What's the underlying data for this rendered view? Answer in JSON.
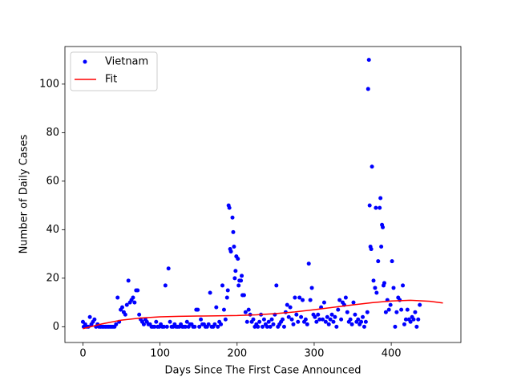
{
  "chart_data": {
    "type": "scatter",
    "xlabel": "Days Since The First Case Announced",
    "ylabel": "Number of Daily Cases",
    "xlim": [
      -23.35,
      490.35
    ],
    "xticks": [
      0,
      100,
      200,
      300,
      400
    ],
    "ylim": [
      -6.5,
      115.5
    ],
    "yticks": [
      0,
      20,
      40,
      60,
      80,
      100
    ],
    "legend": "upper left",
    "series": [
      {
        "name": "Vietnam",
        "color": "#0000ff",
        "type": "scatter",
        "x": [
          0,
          1,
          3,
          5,
          7,
          9,
          11,
          13,
          15,
          17,
          19,
          21,
          23,
          25,
          27,
          29,
          31,
          33,
          35,
          37,
          39,
          41,
          43,
          45,
          47,
          49,
          51,
          53,
          55,
          57,
          59,
          61,
          63,
          65,
          67,
          69,
          71,
          73,
          75,
          77,
          79,
          81,
          83,
          85,
          87,
          89,
          91,
          93,
          95,
          97,
          99,
          101,
          103,
          105,
          107,
          109,
          111,
          113,
          115,
          117,
          119,
          121,
          123,
          125,
          127,
          129,
          131,
          133,
          135,
          137,
          139,
          141,
          143,
          145,
          147,
          149,
          151,
          153,
          155,
          157,
          159,
          161,
          163,
          165,
          167,
          169,
          171,
          173,
          175,
          177,
          179,
          181,
          183,
          185,
          187,
          188,
          189,
          190,
          191,
          192,
          194,
          195,
          196,
          197,
          198,
          199,
          201,
          202,
          203,
          205,
          206,
          207,
          209,
          211,
          213,
          215,
          217,
          219,
          221,
          223,
          225,
          227,
          229,
          231,
          233,
          235,
          237,
          239,
          241,
          243,
          245,
          247,
          249,
          251,
          253,
          255,
          257,
          259,
          261,
          263,
          265,
          267,
          269,
          271,
          273,
          275,
          277,
          279,
          281,
          283,
          285,
          287,
          289,
          291,
          293,
          295,
          297,
          299,
          301,
          303,
          305,
          307,
          309,
          311,
          313,
          315,
          317,
          319,
          321,
          323,
          325,
          327,
          329,
          331,
          333,
          335,
          337,
          339,
          341,
          343,
          345,
          347,
          349,
          351,
          353,
          355,
          357,
          359,
          361,
          363,
          365,
          367,
          369,
          370,
          371,
          372,
          373,
          374,
          375,
          377,
          379,
          380,
          381,
          383,
          385,
          386,
          387,
          388,
          389,
          390,
          391,
          393,
          395,
          397,
          399,
          401,
          403,
          405,
          407,
          409,
          411,
          413,
          415,
          417,
          419,
          421,
          423,
          425,
          427,
          429,
          431,
          433,
          435,
          437
        ],
        "values": [
          2,
          0,
          1,
          0,
          0,
          4,
          1,
          2,
          3,
          0,
          1,
          0,
          0,
          0,
          0,
          0,
          0,
          0,
          0,
          0,
          0,
          0,
          1,
          12,
          2,
          7,
          8,
          6,
          5,
          9,
          19,
          10,
          11,
          12,
          10,
          15,
          15,
          5,
          3,
          2,
          1,
          3,
          2,
          1,
          1,
          0,
          0,
          0,
          2,
          0,
          0,
          1,
          0,
          0,
          17,
          0,
          24,
          2,
          0,
          0,
          1,
          0,
          0,
          0,
          1,
          0,
          0,
          0,
          2,
          0,
          1,
          1,
          0,
          0,
          7,
          7,
          0,
          3,
          1,
          1,
          0,
          0,
          1,
          14,
          0,
          0,
          1,
          8,
          0,
          2,
          1,
          17,
          7,
          3,
          12,
          15,
          50,
          49,
          32,
          31,
          45,
          39,
          33,
          20,
          23,
          29,
          28,
          17,
          19,
          19,
          21,
          13,
          13,
          6,
          2,
          7,
          5,
          2,
          3,
          0,
          1,
          0,
          2,
          5,
          0,
          3,
          1,
          0,
          2,
          0,
          3,
          1,
          5,
          17,
          0,
          1,
          2,
          3,
          0,
          6,
          9,
          4,
          8,
          3,
          1,
          12,
          5,
          2,
          12,
          4,
          11,
          2,
          3,
          1,
          26,
          11,
          16,
          5,
          4,
          2,
          5,
          3,
          8,
          3,
          10,
          2,
          4,
          1,
          3,
          5,
          2,
          4,
          0,
          7,
          11,
          3,
          10,
          9,
          12,
          6,
          2,
          3,
          1,
          10,
          5,
          2,
          3,
          1,
          2,
          4,
          0,
          2,
          6,
          98,
          110,
          50,
          33,
          32,
          66,
          19,
          16,
          49,
          14,
          27,
          49,
          53,
          33,
          42,
          41,
          17,
          18,
          6,
          11,
          7,
          9,
          27,
          16,
          0,
          6,
          12,
          11,
          7,
          17,
          1,
          3,
          7,
          3,
          2,
          4,
          3,
          6,
          0,
          3,
          9
        ]
      },
      {
        "name": "Fit",
        "color": "#ff0000",
        "type": "line",
        "x": [
          0,
          25,
          50,
          75,
          100,
          125,
          150,
          175,
          200,
          225,
          250,
          275,
          300,
          325,
          350,
          375,
          400,
          425,
          450,
          467
        ],
        "values": [
          -0.8,
          1.2,
          2.7,
          3.6,
          4.1,
          4.3,
          4.4,
          4.5,
          4.6,
          4.9,
          5.4,
          6.1,
          7.0,
          8.0,
          9.0,
          9.9,
          10.6,
          10.9,
          10.5,
          9.8
        ]
      }
    ]
  }
}
